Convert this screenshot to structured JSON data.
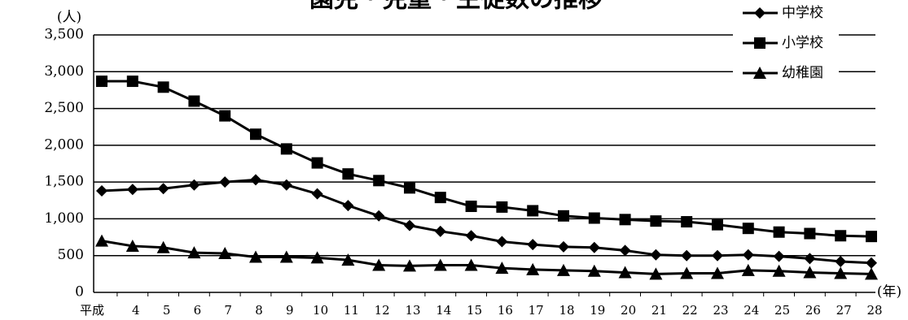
{
  "chart_data": {
    "type": "line",
    "title": "園児・児童・生徒数の推移",
    "y_unit": "(人)",
    "x_unit": "(年)",
    "categories": [
      "平成",
      "4",
      "5",
      "6",
      "7",
      "8",
      "9",
      "10",
      "11",
      "12",
      "13",
      "14",
      "15",
      "16",
      "17",
      "18",
      "19",
      "20",
      "21",
      "22",
      "23",
      "24",
      "25",
      "26",
      "27",
      "28"
    ],
    "series": [
      {
        "name": "中学校",
        "color": "#000000",
        "marker": "diamond",
        "values": [
          1380,
          1400,
          1410,
          1460,
          1500,
          1530,
          1460,
          1340,
          1180,
          1040,
          910,
          830,
          770,
          690,
          650,
          620,
          610,
          570,
          510,
          500,
          500,
          510,
          490,
          460,
          420,
          400
        ]
      },
      {
        "name": "小学校",
        "color": "#000000",
        "marker": "square",
        "values": [
          2870,
          2870,
          2790,
          2600,
          2400,
          2150,
          1950,
          1760,
          1610,
          1520,
          1420,
          1290,
          1170,
          1160,
          1110,
          1040,
          1010,
          990,
          970,
          960,
          920,
          870,
          820,
          800,
          770,
          760
        ]
      },
      {
        "name": "幼稚園",
        "color": "#000000",
        "marker": "triangle",
        "values": [
          700,
          630,
          610,
          540,
          530,
          480,
          480,
          470,
          440,
          370,
          360,
          370,
          370,
          330,
          310,
          300,
          290,
          270,
          250,
          260,
          260,
          300,
          290,
          270,
          260,
          250
        ]
      }
    ],
    "ylim": [
      0,
      3500
    ],
    "yticks": [
      0,
      500,
      {
        "value": 1000,
        "label": "1,000"
      },
      {
        "value": 1500,
        "label": "1,500"
      },
      {
        "value": 2000,
        "label": "2,000"
      },
      {
        "value": 2500,
        "label": "2,500"
      },
      {
        "value": 3000,
        "label": "3,000"
      },
      {
        "value": 3500,
        "label": "3,500"
      }
    ],
    "grid": true,
    "legend": "top-right"
  }
}
